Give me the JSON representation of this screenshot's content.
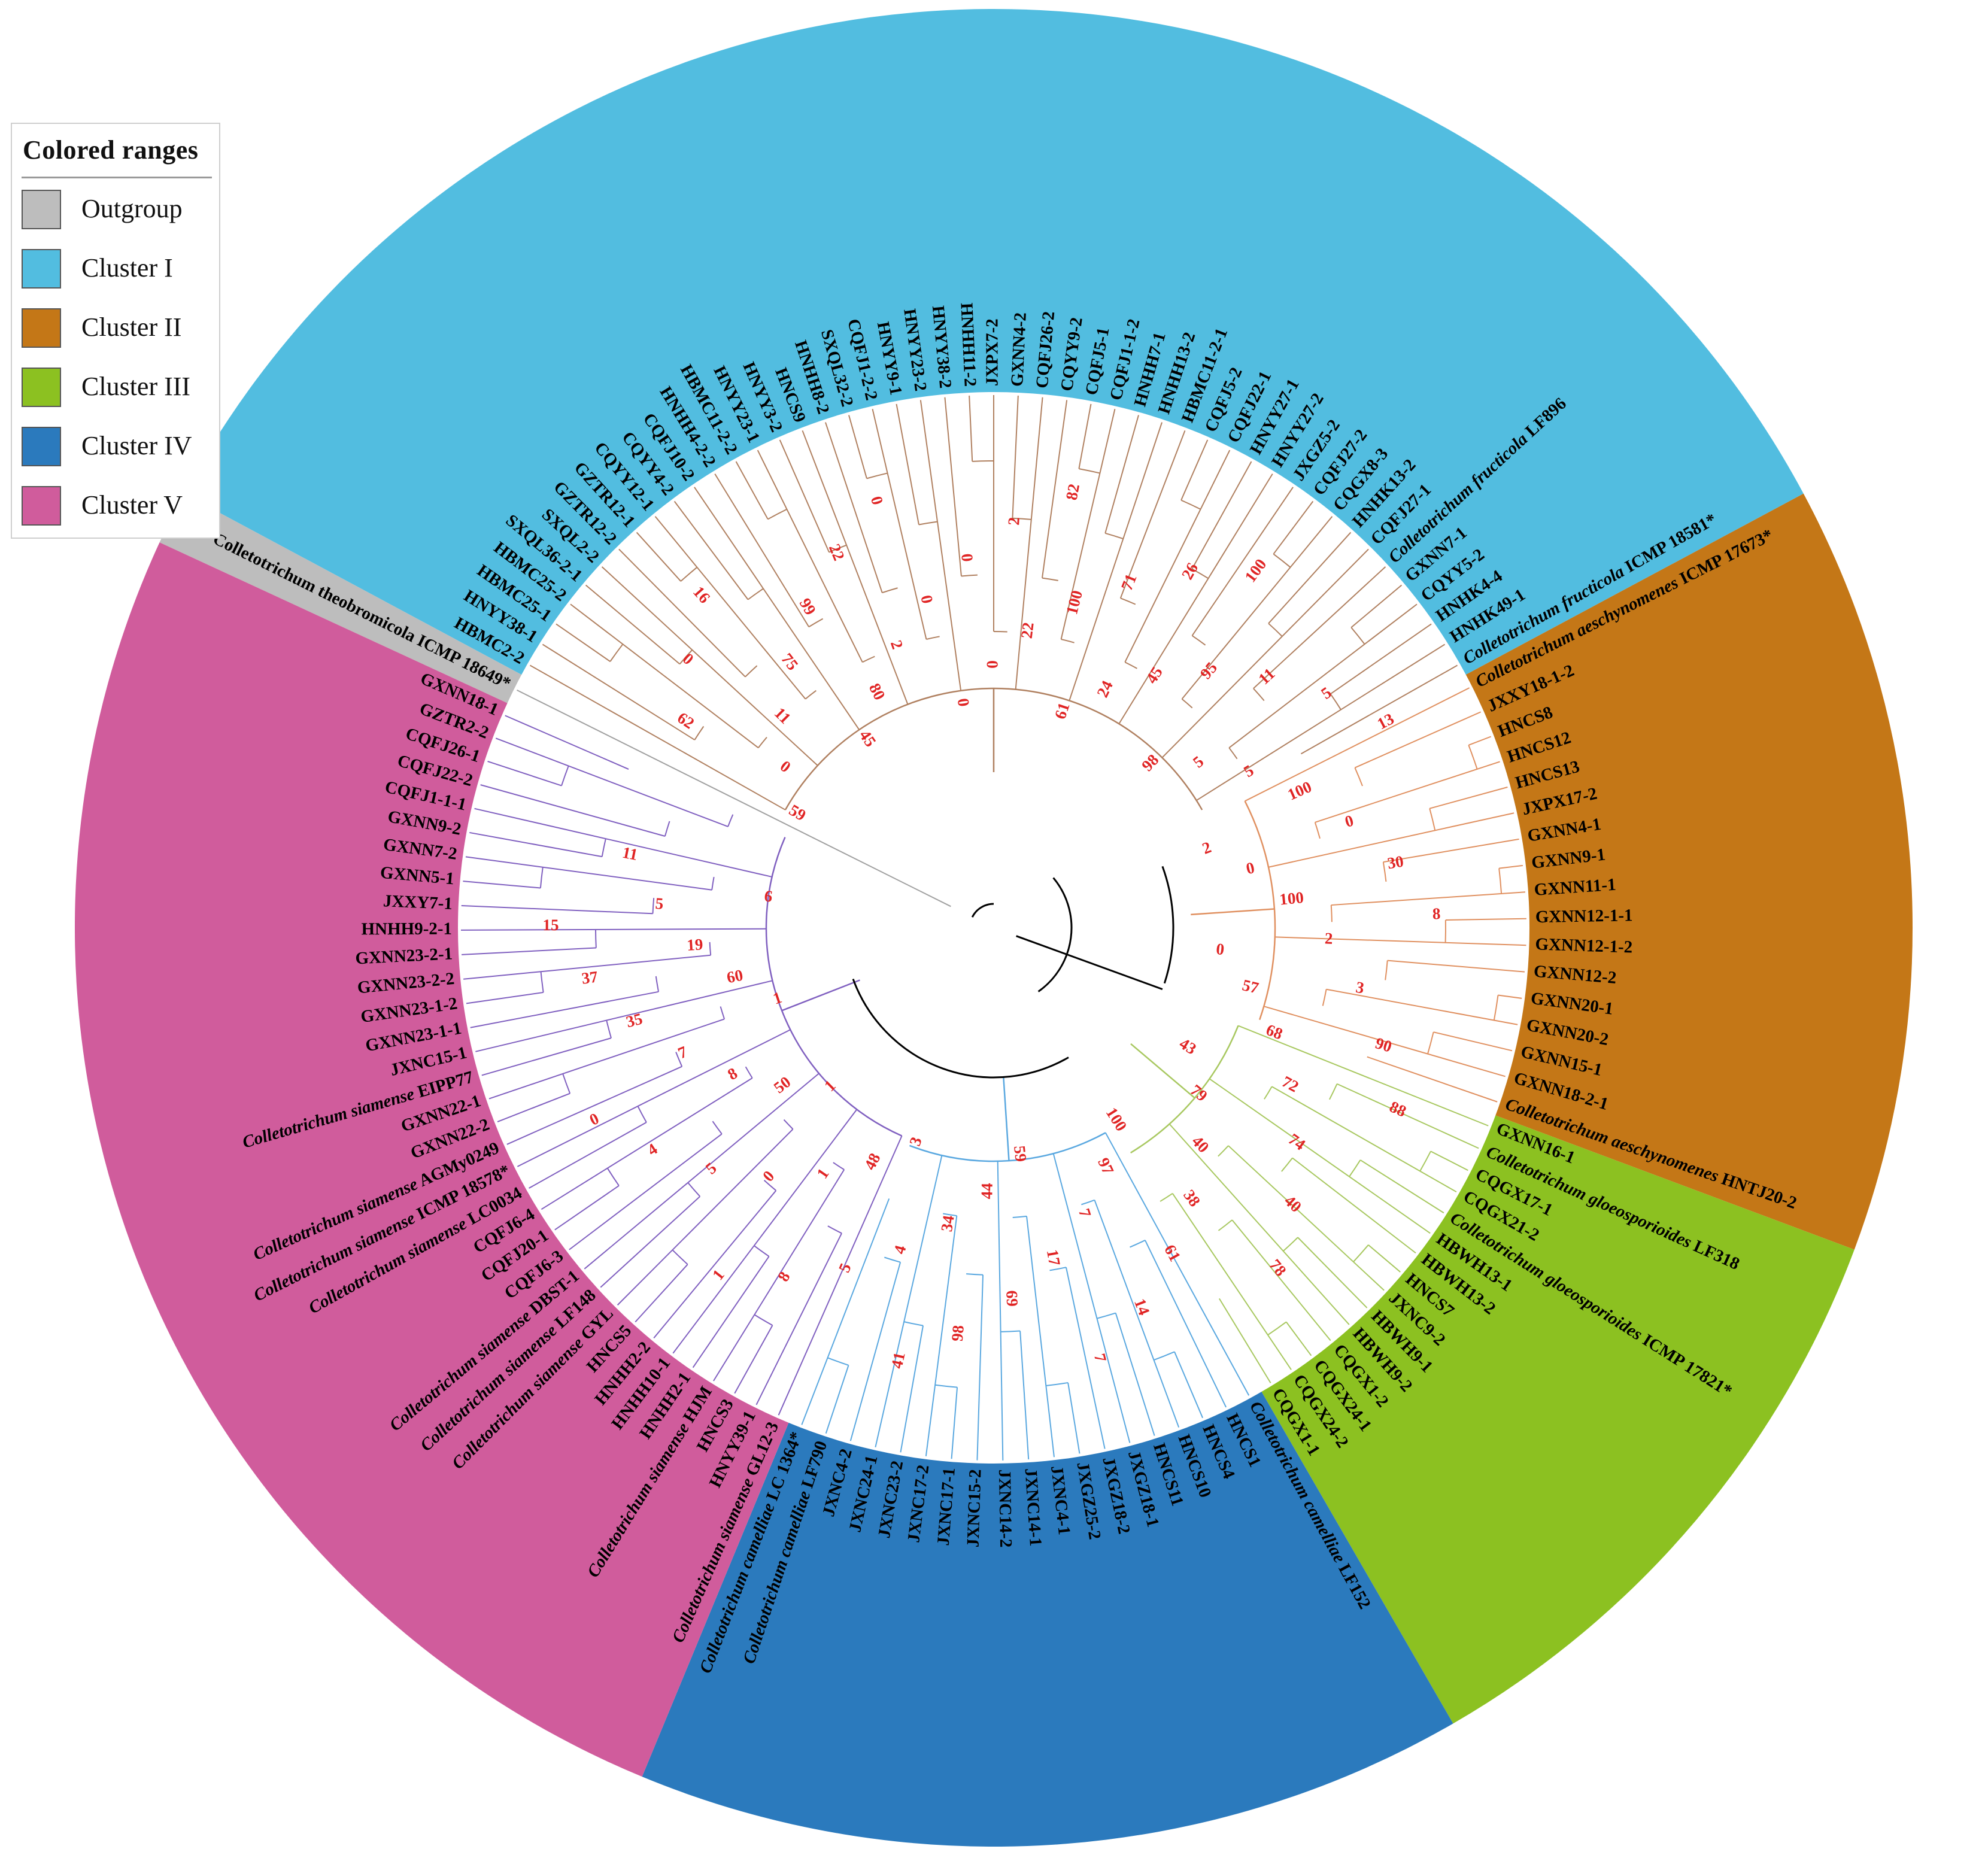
{
  "legend": {
    "title": "Colored ranges",
    "items": [
      {
        "label": "Outgroup",
        "color": "#bdbdbd"
      },
      {
        "label": "Cluster I",
        "color": "#52bde0"
      },
      {
        "label": "Cluster II",
        "color": "#c47717"
      },
      {
        "label": "Cluster III",
        "color": "#8cc121"
      },
      {
        "label": "Cluster IV",
        "color": "#2b7abd"
      },
      {
        "label": "Cluster V",
        "color": "#d05c9c"
      }
    ]
  },
  "branch_colors": {
    "outgroup": "#a0a0a0",
    "cluster1": "#b08060",
    "cluster2": "#e09060",
    "cluster3": "#a8c860",
    "cluster4": "#5aa8e0",
    "cluster5": "#8060c0",
    "backbone": "#000000"
  },
  "ranges": [
    {
      "name": "outgroup",
      "color": "#bdbdbd",
      "tips": [
        {
          "label": "Colletotrichum theobromicola ICMP 18649*"
        }
      ]
    },
    {
      "name": "cluster1",
      "color": "#52bde0",
      "tips": [
        {
          "label": "HBMC2-2"
        },
        {
          "label": "HNYY38-1"
        },
        {
          "label": "HBMC25-1"
        },
        {
          "label": "HBMC25-2"
        },
        {
          "label": "SXQL36-2-1"
        },
        {
          "label": "SXQL2-2"
        },
        {
          "label": "GZTR12-2"
        },
        {
          "label": "GZTR12-1"
        },
        {
          "label": "CQYY12-1"
        },
        {
          "label": "CQYY4-2"
        },
        {
          "label": "CQFJ10-2"
        },
        {
          "label": "HNHH4-2-2"
        },
        {
          "label": "HBMC11-2-2"
        },
        {
          "label": "HNYY23-1"
        },
        {
          "label": "HNYY3-2"
        },
        {
          "label": "HNCS9"
        },
        {
          "label": "HNHH8-2"
        },
        {
          "label": "SXQL32-2"
        },
        {
          "label": "CQFJ1-2-2"
        },
        {
          "label": "HNYY9-1"
        },
        {
          "label": "HNYY23-2"
        },
        {
          "label": "HNYY38-2"
        },
        {
          "label": "HNHH11-2"
        },
        {
          "label": "JXPX7-2"
        },
        {
          "label": "GXNN4-2"
        },
        {
          "label": "CQFJ26-2"
        },
        {
          "label": "CQYY9-2"
        },
        {
          "label": "CQFJ5-1"
        },
        {
          "label": "CQFJ1-1-2"
        },
        {
          "label": "HNHH7-1"
        },
        {
          "label": "HNHH13-2"
        },
        {
          "label": "HBMC11-2-1"
        },
        {
          "label": "CQFJ5-2"
        },
        {
          "label": "CQFJ22-1"
        },
        {
          "label": "HNYY27-1"
        },
        {
          "label": "HNYY27-2"
        },
        {
          "label": "JXGZ5-2"
        },
        {
          "label": "CQFJ27-2"
        },
        {
          "label": "CQGX8-3"
        },
        {
          "label": "HNHK13-2"
        },
        {
          "label": "CQFJ27-1"
        },
        {
          "label": "Colletotrichum fructicola LF896",
          "italic": "Colletotrichum fructicola",
          "rest": " LF896"
        },
        {
          "label": "GXNN7-1"
        },
        {
          "label": "CQYY5-2"
        },
        {
          "label": "HNHK4-4"
        },
        {
          "label": "HNHK49-1"
        },
        {
          "label": "Colletotrichum fructicola ICMP 18581*",
          "italic": "Colletotrichum fructicola",
          "rest": " ICMP 18581*"
        }
      ]
    },
    {
      "name": "cluster2",
      "color": "#c47717",
      "tips": [
        {
          "label": "Colletotrichum aeschynomenes ICMP 17673*",
          "italic": "Colletotrichum aeschynomenes",
          "rest": " ICMP 17673*"
        },
        {
          "label": "JXXY18-1-2"
        },
        {
          "label": "HNCS8"
        },
        {
          "label": "HNCS12"
        },
        {
          "label": "HNCS13"
        },
        {
          "label": "JXPX17-2"
        },
        {
          "label": "GXNN4-1"
        },
        {
          "label": "GXNN9-1"
        },
        {
          "label": "GXNN11-1"
        },
        {
          "label": "GXNN12-1-1"
        },
        {
          "label": "GXNN12-1-2"
        },
        {
          "label": "GXNN12-2"
        },
        {
          "label": "GXNN20-1"
        },
        {
          "label": "GXNN20-2"
        },
        {
          "label": "GXNN15-1"
        },
        {
          "label": "GXNN18-2-1"
        },
        {
          "label": "Colletotrichum aeschynomenes HNTJ20-2",
          "italic": "Colletotrichum aeschynomenes",
          "rest": " HNTJ20-2"
        }
      ]
    },
    {
      "name": "cluster3",
      "color": "#8cc121",
      "tips": [
        {
          "label": "GXNN16-1"
        },
        {
          "label": "Colletotrichum gloeosporioides LF318",
          "italic": "Colletotrichum gloeosporioides",
          "rest": " LF318"
        },
        {
          "label": "CQGX17-1"
        },
        {
          "label": "CQGX21-2"
        },
        {
          "label": "Colletotrichum gloeosporioides ICMP 17821*",
          "italic": "Colletotrichum gloeosporioides",
          "rest": " ICMP 17821*"
        },
        {
          "label": "HBWH13-1"
        },
        {
          "label": "HBWH13-2"
        },
        {
          "label": "HNCS7"
        },
        {
          "label": "JXNC9-2"
        },
        {
          "label": "HBWH9-1"
        },
        {
          "label": "HBWH9-2"
        },
        {
          "label": "CQGX1-2"
        },
        {
          "label": "CQGX24-1"
        },
        {
          "label": "CQGX24-2"
        },
        {
          "label": "CQGX1-1"
        }
      ]
    },
    {
      "name": "cluster4",
      "color": "#2b7abd",
      "tips": [
        {
          "label": "Colletotrichum camelliae LF152",
          "italic": "Colletotrichum camelliae",
          "rest": " LF152"
        },
        {
          "label": "HNCS1"
        },
        {
          "label": "HNCS4"
        },
        {
          "label": "HNCS10"
        },
        {
          "label": "HNCS11"
        },
        {
          "label": "JXGZ18-1"
        },
        {
          "label": "JXGZ18-2"
        },
        {
          "label": "JXGZ25-2"
        },
        {
          "label": "JXNC4-1"
        },
        {
          "label": "JXNC14-1"
        },
        {
          "label": "JXNC14-2"
        },
        {
          "label": "JXNC15-2"
        },
        {
          "label": "JXNC17-1"
        },
        {
          "label": "JXNC17-2"
        },
        {
          "label": "JXNC23-2"
        },
        {
          "label": "JXNC24-1"
        },
        {
          "label": "JXNC4-2"
        },
        {
          "label": "Colletotrichum camelliae LF790",
          "italic": "Colletotrichum camelliae",
          "rest": " LF790"
        },
        {
          "label": "Colletotrichum camelliae LC 1364*",
          "italic": "Colletotrichum camelliae",
          "rest": " LC 1364*"
        }
      ]
    },
    {
      "name": "cluster5",
      "color": "#d05c9c",
      "tips": [
        {
          "label": "Colletotrichum siamense GL12-3",
          "italic": "Colletotrichum siamense",
          "rest": " GL12-3"
        },
        {
          "label": "HNYY39-1"
        },
        {
          "label": "HNCS3"
        },
        {
          "label": "Colletotrichum siamense HJM",
          "italic": "Colletotrichum siamense",
          "rest": " HJM"
        },
        {
          "label": "HNHH2-1"
        },
        {
          "label": "HNHH10-1"
        },
        {
          "label": "HNHH2-2"
        },
        {
          "label": "HNCS5"
        },
        {
          "label": "Colletotrichum siamense GYL",
          "italic": "Colletotrichum siamense",
          "rest": " GYL"
        },
        {
          "label": "Colletotrichum siamense LF148",
          "italic": "Colletotrichum siamense",
          "rest": " LF148"
        },
        {
          "label": "Colletotrichum siamense DBST-1",
          "italic": "Colletotrichum siamense",
          "rest": " DBST-1"
        },
        {
          "label": "CQFJ6-3"
        },
        {
          "label": "CQFJ20-1"
        },
        {
          "label": "CQFJ6-4"
        },
        {
          "label": "Colletotrichum siamense LC0034",
          "italic": "Colletotrichum siamense",
          "rest": " LC0034"
        },
        {
          "label": "Colletotrichum siamense ICMP 18578*",
          "italic": "Colletotrichum siamense",
          "rest": " ICMP 18578*"
        },
        {
          "label": "Colletotrichum siamense AGMy0249",
          "italic": "Colletotrichum siamense",
          "rest": " AGMy0249"
        },
        {
          "label": "GXNN22-2"
        },
        {
          "label": "GXNN22-1"
        },
        {
          "label": "Colletotrichum siamense EIPP77",
          "italic": "Colletotrichum siamense",
          "rest": " EIPP77"
        },
        {
          "label": "JXNC15-1"
        },
        {
          "label": "GXNN23-1-1"
        },
        {
          "label": "GXNN23-1-2"
        },
        {
          "label": "GXNN23-2-2"
        },
        {
          "label": "GXNN23-2-1"
        },
        {
          "label": "HNHH9-2-1"
        },
        {
          "label": "JXXY7-1"
        },
        {
          "label": "GXNN5-1"
        },
        {
          "label": "GXNN7-2"
        },
        {
          "label": "GXNN9-2"
        },
        {
          "label": "CQFJ1-1-1"
        },
        {
          "label": "CQFJ22-2"
        },
        {
          "label": "CQFJ26-1"
        },
        {
          "label": "GZTR2-2"
        },
        {
          "label": "GXNN18-1"
        }
      ]
    }
  ],
  "bootstrap_values": [
    "59",
    "62",
    "0",
    "0",
    "11",
    "16",
    "75",
    "45",
    "99",
    "80",
    "22",
    "2",
    "0",
    "0",
    "0",
    "0",
    "0",
    "2",
    "22",
    "82",
    "100",
    "61",
    "71",
    "24",
    "26",
    "45",
    "100",
    "95",
    "98",
    "11",
    "5",
    "5",
    "5",
    "13",
    "100",
    "2",
    "0",
    "0",
    "30",
    "100",
    "8",
    "2",
    "0",
    "3",
    "57",
    "90",
    "68",
    "88",
    "72",
    "43",
    "74",
    "79",
    "40",
    "40",
    "78",
    "38",
    "100",
    "61",
    "97",
    "14",
    "7",
    "7",
    "17",
    "59",
    "69",
    "44",
    "98",
    "34",
    "41",
    "4",
    "3",
    "5",
    "48",
    "8",
    "1",
    "1",
    "0",
    "1",
    "5",
    "50",
    "4",
    "8",
    "0",
    "7",
    "1",
    "35",
    "60",
    "37",
    "19",
    "15",
    "5",
    "6",
    "11"
  ]
}
